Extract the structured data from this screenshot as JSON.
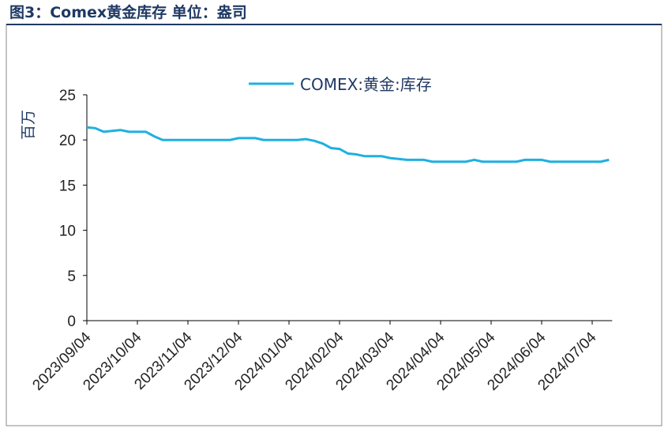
{
  "chart_data": {
    "type": "line",
    "title": "图3：Comex黄金库存 单位：盎司",
    "y_label": "百万",
    "categories": [
      "2023/09/04",
      null,
      null,
      null,
      null,
      null,
      "2023/10/04",
      null,
      null,
      null,
      null,
      null,
      "2023/11/04",
      null,
      null,
      null,
      null,
      null,
      "2023/12/04",
      null,
      null,
      null,
      null,
      null,
      "2024/01/04",
      null,
      null,
      null,
      null,
      null,
      "2024/02/04",
      null,
      null,
      null,
      null,
      null,
      "2024/03/04",
      null,
      null,
      null,
      null,
      null,
      "2024/04/04",
      null,
      null,
      null,
      null,
      null,
      "2024/05/04",
      null,
      null,
      null,
      null,
      null,
      "2024/06/04",
      null,
      null,
      null,
      null,
      null,
      "2024/07/04",
      null,
      null
    ],
    "series": [
      {
        "name": "COMEX:黄金:库存",
        "color": "#1fb0e0",
        "values": [
          21.4,
          21.3,
          20.9,
          21.0,
          21.1,
          20.9,
          20.9,
          20.9,
          20.4,
          20.0,
          20.0,
          20.0,
          20.0,
          20.0,
          20.0,
          20.0,
          20.0,
          20.0,
          20.2,
          20.2,
          20.2,
          20.0,
          20.0,
          20.0,
          20.0,
          20.0,
          20.1,
          19.9,
          19.6,
          19.1,
          19.0,
          18.5,
          18.4,
          18.2,
          18.2,
          18.2,
          18.0,
          17.9,
          17.8,
          17.8,
          17.8,
          17.6,
          17.6,
          17.6,
          17.6,
          17.6,
          17.8,
          17.6,
          17.6,
          17.6,
          17.6,
          17.6,
          17.8,
          17.8,
          17.8,
          17.6,
          17.6,
          17.6,
          17.6,
          17.6,
          17.6,
          17.6,
          17.8
        ]
      }
    ],
    "ylim": [
      0,
      25
    ],
    "yticks": [
      0,
      5,
      10,
      15,
      20,
      25
    ],
    "legend": "top"
  }
}
